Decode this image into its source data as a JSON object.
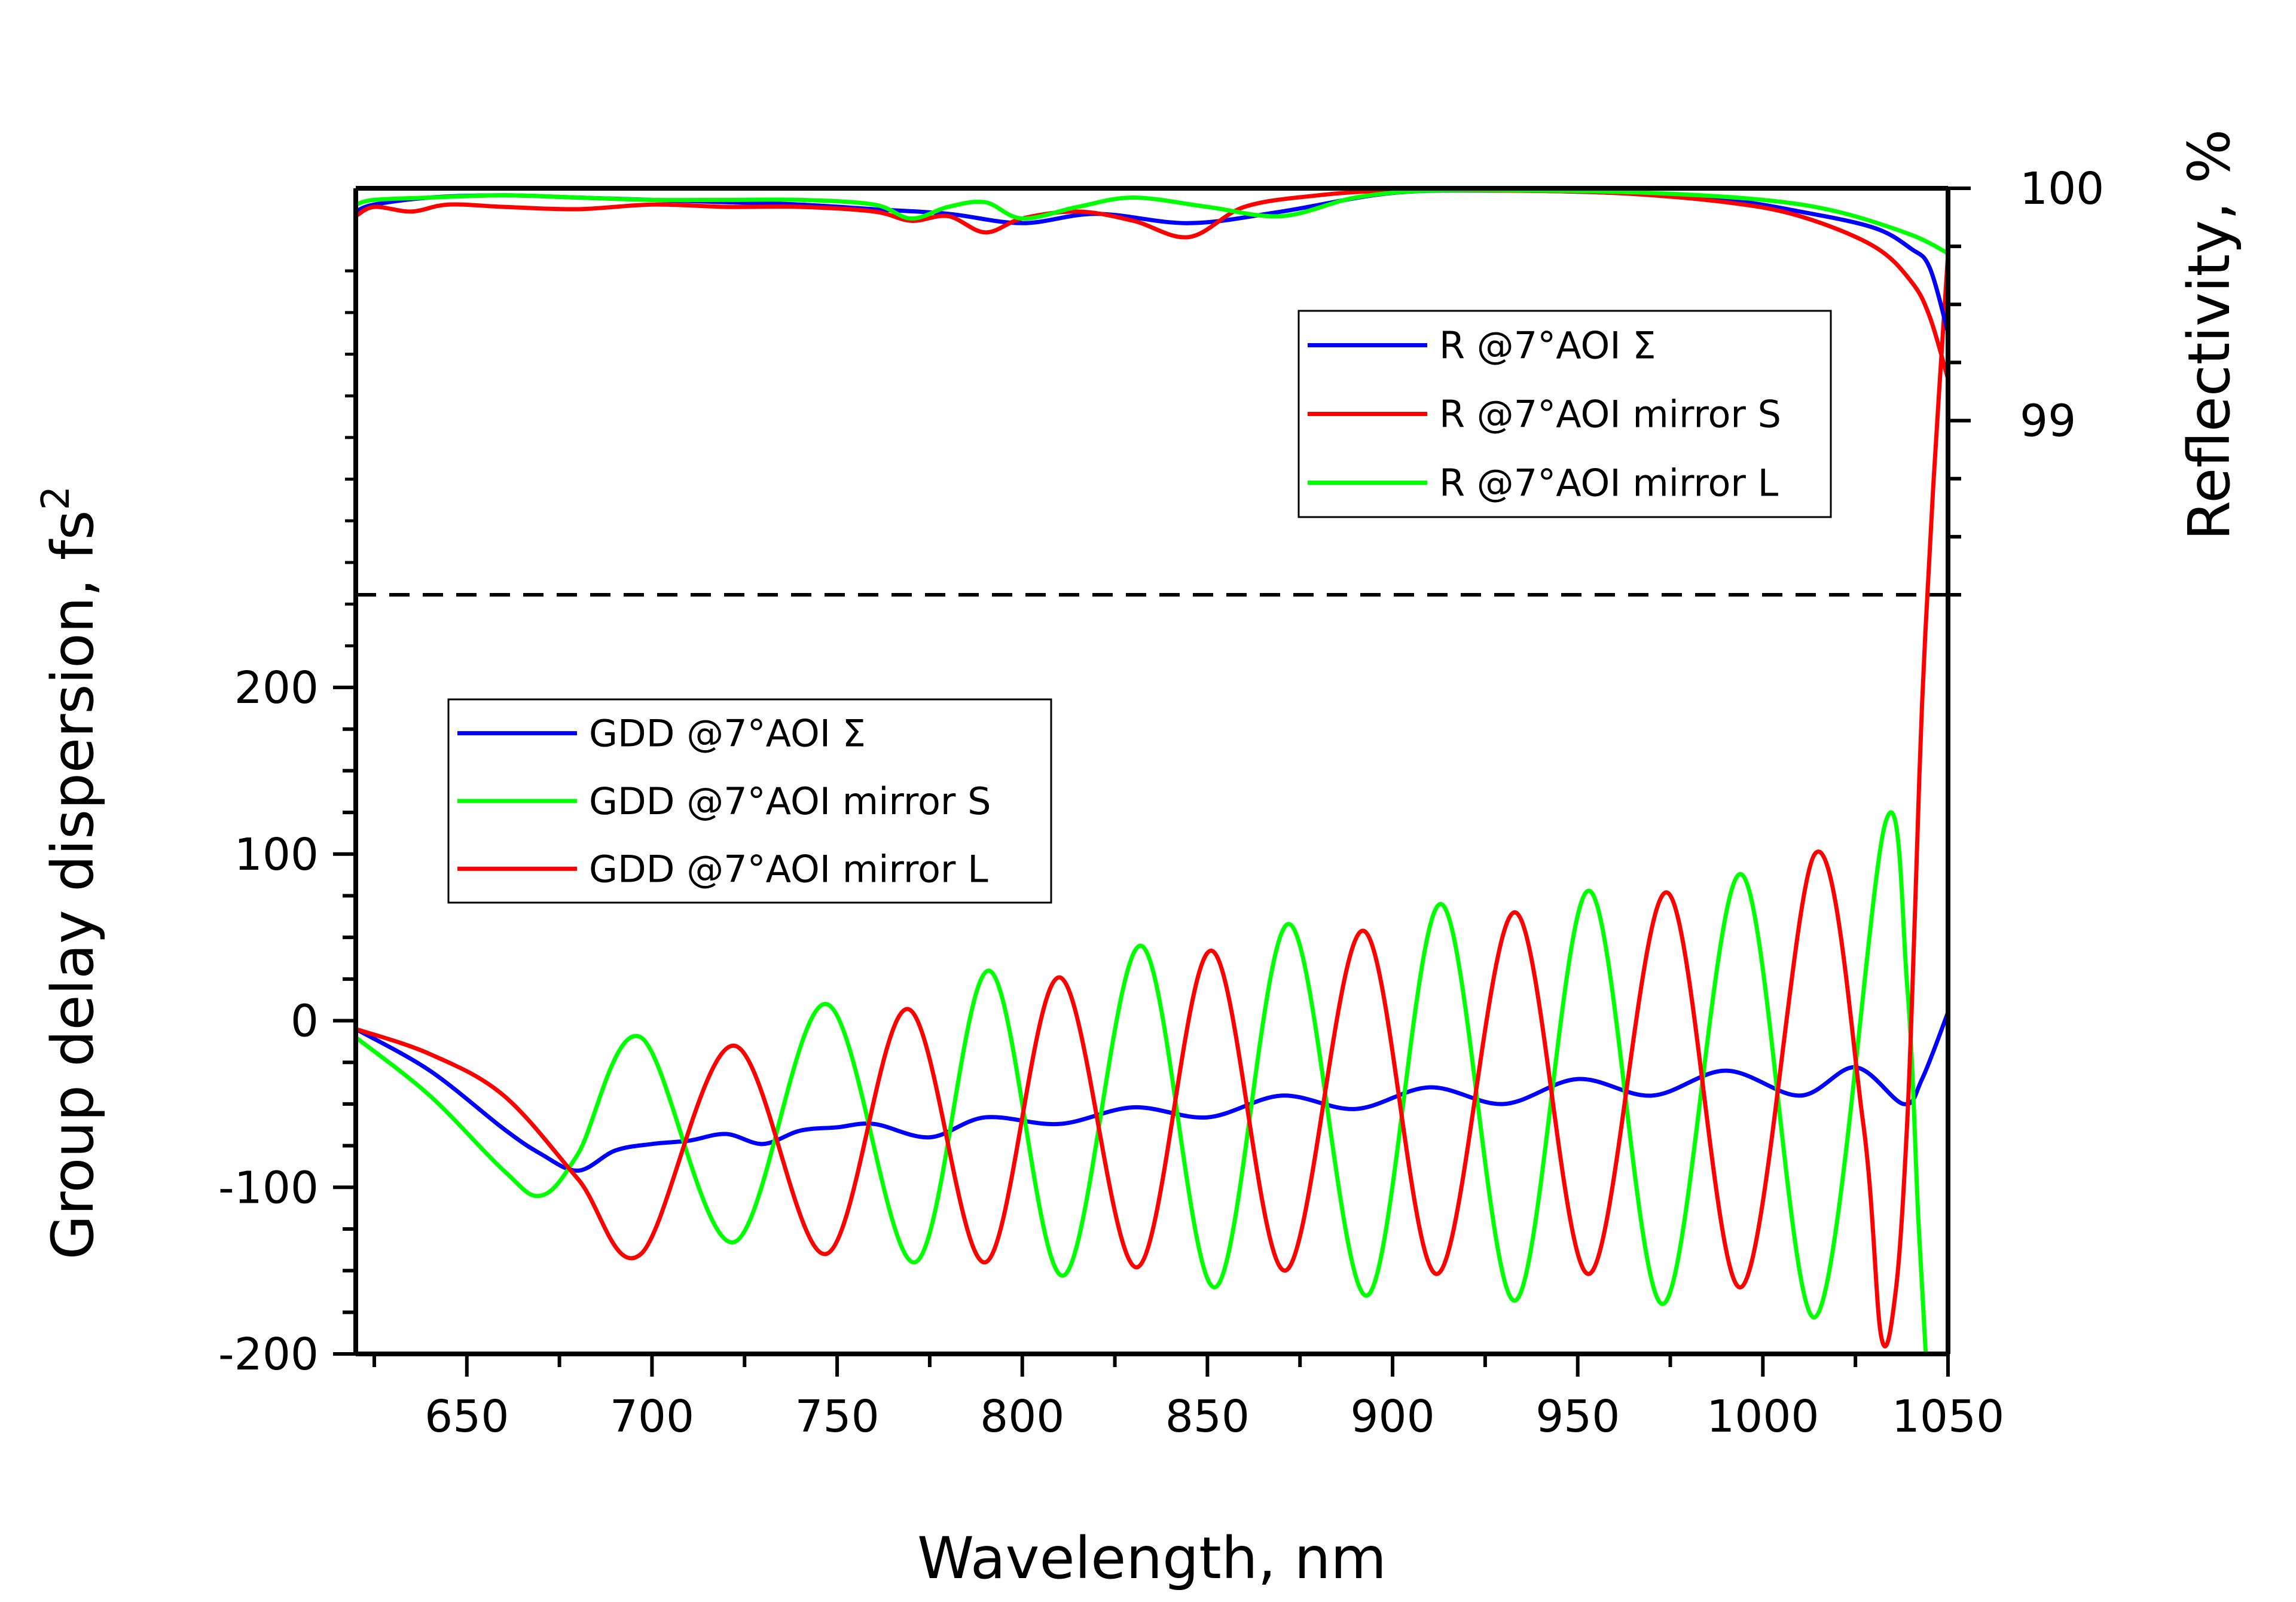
{
  "chart_data": {
    "type": "line",
    "xlabel": "Wavelength, nm",
    "ylabel_left": "Group delay dispersion, fs",
    "ylabel_left_superscript": "2",
    "ylabel_right": "Reflectivity, %",
    "xlim": [
      620,
      1050
    ],
    "x_ticks": [
      "650",
      "700",
      "750",
      "800",
      "850",
      "900",
      "950",
      "1000",
      "1050"
    ],
    "gdd_axis": {
      "ylim": [
        -200,
        200
      ],
      "ticks": [
        "-200",
        "-100",
        "0",
        "100",
        "200"
      ]
    },
    "reflectivity_axis": {
      "ylim": [
        98.25,
        100
      ],
      "ticks": [
        "99",
        "100"
      ]
    },
    "divider": "dashed line between reflectivity and GDD panels",
    "colors": {
      "blue": "#0000ff",
      "red": "#ff0000",
      "green": "#00ff00"
    },
    "reflectivity_legend": [
      {
        "label": "R @7°AOI Σ",
        "color": "#0000ff"
      },
      {
        "label": "R @7°AOI mirror S",
        "color": "#ff0000"
      },
      {
        "label": "R @7°AOI mirror L",
        "color": "#00ff00"
      }
    ],
    "gdd_legend": [
      {
        "label": "GDD @7°AOI Σ",
        "color": "#0000ff"
      },
      {
        "label": "GDD @7°AOI mirror S",
        "color": "#00ff00"
      },
      {
        "label": "GDD @7°AOI mirror L",
        "color": "#ff0000"
      }
    ],
    "reflectivity_series": [
      {
        "color": "#0000ff",
        "x": [
          620,
          625,
          640,
          660,
          680,
          700,
          720,
          740,
          760,
          780,
          800,
          820,
          845,
          870,
          900,
          930,
          960,
          990,
          1010,
          1030,
          1040,
          1045,
          1050
        ],
        "y": [
          99.9,
          99.93,
          99.96,
          99.97,
          99.96,
          99.95,
          99.94,
          99.93,
          99.91,
          99.89,
          99.85,
          99.89,
          99.85,
          99.9,
          99.98,
          99.99,
          99.98,
          99.95,
          99.9,
          99.83,
          99.74,
          99.66,
          99.38
        ]
      },
      {
        "color": "#ff0000",
        "x": [
          620,
          625,
          635,
          645,
          660,
          680,
          700,
          720,
          740,
          760,
          770,
          780,
          790,
          800,
          815,
          830,
          845,
          860,
          880,
          900,
          930,
          960,
          990,
          1010,
          1030,
          1040,
          1045,
          1050
        ],
        "y": [
          99.88,
          99.92,
          99.9,
          99.93,
          99.92,
          99.91,
          99.93,
          99.92,
          99.92,
          99.9,
          99.86,
          99.88,
          99.81,
          99.87,
          99.9,
          99.86,
          99.79,
          99.92,
          99.97,
          99.99,
          99.99,
          99.98,
          99.94,
          99.88,
          99.75,
          99.6,
          99.45,
          99.18
        ]
      },
      {
        "color": "#00ff00",
        "x": [
          620,
          625,
          640,
          660,
          680,
          700,
          720,
          740,
          760,
          770,
          780,
          790,
          800,
          815,
          830,
          850,
          870,
          890,
          910,
          940,
          970,
          1000,
          1020,
          1040,
          1050
        ],
        "y": [
          99.93,
          99.95,
          99.96,
          99.97,
          99.96,
          99.95,
          99.95,
          99.95,
          99.93,
          99.87,
          99.92,
          99.94,
          99.87,
          99.92,
          99.96,
          99.92,
          99.88,
          99.96,
          99.99,
          99.99,
          99.98,
          99.95,
          99.9,
          99.8,
          99.72
        ]
      }
    ],
    "gdd_series": [
      {
        "color": "#0000ff",
        "label": "GDD @7°AOI Σ",
        "x": [
          620,
          640,
          660,
          670,
          680,
          690,
          700,
          710,
          720,
          730,
          740,
          750,
          760,
          775,
          790,
          810,
          830,
          850,
          870,
          890,
          910,
          930,
          950,
          970,
          990,
          1010,
          1025,
          1038,
          1043,
          1050
        ],
        "y": [
          -5,
          -30,
          -65,
          -80,
          -90,
          -78,
          -74,
          -72,
          -68,
          -74,
          -66,
          -64,
          -62,
          -70,
          -58,
          -62,
          -52,
          -58,
          -45,
          -53,
          -40,
          -50,
          -35,
          -45,
          -30,
          -45,
          -28,
          -50,
          -35,
          5
        ]
      },
      {
        "color": "#00ff00",
        "label": "GDD @7°AOI mirror S",
        "x": [
          620,
          640,
          660,
          670,
          680,
          697,
          722,
          747,
          771,
          791,
          811,
          832,
          852,
          872,
          893,
          913,
          933,
          953,
          973,
          994,
          1014,
          1033,
          1039,
          1042,
          1044
        ],
        "y": [
          -10,
          -45,
          -90,
          -105,
          -80,
          -10,
          -133,
          10,
          -145,
          30,
          -153,
          45,
          -160,
          58,
          -165,
          70,
          -168,
          78,
          -170,
          88,
          -178,
          118,
          20,
          -120,
          -200
        ]
      },
      {
        "color": "#ff0000",
        "label": "GDD @7°AOI mirror L",
        "x": [
          620,
          640,
          660,
          680,
          697,
          722,
          747,
          769,
          790,
          810,
          831,
          851,
          871,
          892,
          912,
          933,
          953,
          974,
          994,
          1014,
          1027,
          1032,
          1036,
          1039,
          1041,
          1043,
          1046,
          1050
        ],
        "y": [
          -5,
          -20,
          -45,
          -95,
          -140,
          -15,
          -140,
          7,
          -145,
          26,
          -148,
          42,
          -150,
          54,
          -152,
          65,
          -152,
          77,
          -160,
          100,
          -60,
          -190,
          -160,
          -60,
          60,
          190,
          320,
          460
        ]
      }
    ]
  }
}
